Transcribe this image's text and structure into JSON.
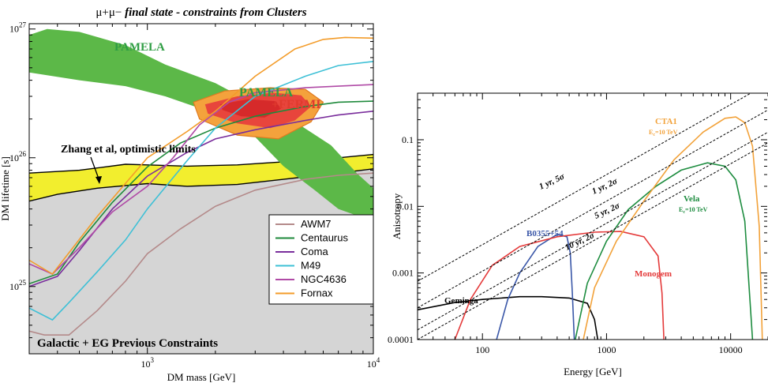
{
  "chart_data": [
    {
      "type": "line",
      "title": "μ+μ− final state - constraints from Clusters",
      "title_plain": "μ+μ−",
      "title_italic": "final state - constraints from Clusters",
      "xlabel": "DM mass [GeV]",
      "ylabel": "DM lifetime [s]",
      "xscale": "log",
      "yscale": "log",
      "xlim": [
        300,
        10000
      ],
      "ylim": [
        3e+24,
        1.1e+27
      ],
      "x_ticks": [
        {
          "value": 1000,
          "base": "10",
          "exp": "3"
        },
        {
          "value": 10000,
          "base": "10",
          "exp": "4"
        }
      ],
      "y_ticks": [
        {
          "value": 1e+25,
          "base": "10",
          "exp": "25"
        },
        {
          "value": 1e+26,
          "base": "10",
          "exp": "26"
        },
        {
          "value": 1e+27,
          "base": "10",
          "exp": "27"
        }
      ],
      "series": [
        {
          "name": "AWM7",
          "color": "#b48a8a",
          "x": [
            300,
            350,
            450,
            600,
            800,
            1000,
            1400,
            2000,
            3000,
            5000,
            7000,
            10000
          ],
          "y": [
            4.5e+24,
            4.2e+24,
            4.2e+24,
            6.5e+24,
            1.1e+25,
            1.8e+25,
            2.8e+25,
            4.2e+25,
            5.6e+25,
            6.8e+25,
            7.3e+25,
            7.6e+25
          ]
        },
        {
          "name": "Centaurus",
          "color": "#1f8a3c",
          "x": [
            300,
            400,
            500,
            700,
            1000,
            1400,
            2000,
            3000,
            5000,
            7000,
            10000
          ],
          "y": [
            1.05e+25,
            1.25e+25,
            2.2e+25,
            4.5e+25,
            8.5e+25,
            1.3e+26,
            1.7e+26,
            2.1e+26,
            2.5e+26,
            2.7e+26,
            2.75e+26
          ]
        },
        {
          "name": "Coma",
          "color": "#7a2e9c",
          "x": [
            300,
            400,
            500,
            700,
            1000,
            1500,
            2000,
            3000,
            5000,
            7000,
            10000
          ],
          "y": [
            1e+25,
            1.2e+25,
            1.9e+25,
            4e+25,
            7.2e+25,
            1.1e+26,
            1.4e+26,
            1.65e+26,
            1.95e+26,
            2.15e+26,
            2.3e+26
          ]
        },
        {
          "name": "M49",
          "color": "#3ec0d6",
          "x": [
            300,
            380,
            450,
            600,
            800,
            1000,
            1500,
            2000,
            3000,
            5000,
            7000,
            10000
          ],
          "y": [
            6.8e+24,
            5.5e+24,
            7.5e+24,
            1.3e+25,
            2.3e+25,
            4e+25,
            9.5e+25,
            1.7e+26,
            3e+26,
            4.3e+26,
            5.2e+26,
            5.6e+26
          ]
        },
        {
          "name": "NGC4636",
          "color": "#b04aa6",
          "x": [
            300,
            380,
            500,
            700,
            1000,
            1300,
            1700,
            2300,
            3000,
            5000,
            7000,
            10000
          ],
          "y": [
            1.5e+25,
            1.25e+25,
            2e+25,
            3.8e+25,
            6e+25,
            1e+26,
            1.8e+26,
            2.7e+26,
            3.2e+26,
            3.5e+26,
            3.6e+26,
            3.7e+26
          ]
        },
        {
          "name": "Fornax",
          "color": "#f39c2a",
          "x": [
            300,
            380,
            600,
            1000,
            1500,
            2000,
            3000,
            4500,
            6000,
            7500,
            10000
          ],
          "y": [
            1.6e+25,
            1.25e+25,
            3.5e+25,
            1e+26,
            1.6e+26,
            2.3e+26,
            4.3e+26,
            7e+26,
            8.3e+26,
            8.6e+26,
            8.5e+26
          ]
        }
      ],
      "annotations": {
        "pamela": "PAMELA",
        "pamela_fermi_1": "PAMELA",
        "pamela_fermi_2": "+FERMI",
        "zhang": "Zhang et al, optimistic limits",
        "galactic": "Galactic + EG Previous Constraints"
      },
      "colors": {
        "pamela_band": "#5cb848",
        "fermi_outer": "#f4a23c",
        "fermi_inner": "#e8453c",
        "fermi_core": "#d62a2a",
        "zhang_band": "#f2ee2e",
        "excluded": "#d5d5d5"
      },
      "legend_position": "lower-right"
    },
    {
      "type": "line",
      "xlabel": "Energy [GeV]",
      "ylabel": "Anisotropy",
      "xscale": "log",
      "yscale": "log",
      "xlim": [
        30,
        20000
      ],
      "ylim": [
        0.0001,
        0.5
      ],
      "x_ticks": [
        "100",
        "1000",
        "10000"
      ],
      "y_ticks": [
        "0.0001",
        "0.001",
        "0.01",
        "0.1"
      ],
      "series": [
        {
          "name": "Geminga",
          "color": "#000000",
          "x": [
            30,
            60,
            100,
            200,
            300,
            500,
            700,
            800,
            850
          ],
          "y": [
            0.00028,
            0.00036,
            0.0004,
            0.00044,
            0.00044,
            0.00042,
            0.00035,
            0.0002,
            0.0001
          ]
        },
        {
          "name": "B0355+54",
          "color": "#3a57a8",
          "x": [
            130,
            160,
            200,
            280,
            400,
            480,
            510,
            530,
            550
          ],
          "y": [
            0.0001,
            0.0004,
            0.001,
            0.0025,
            0.0038,
            0.0035,
            0.002,
            0.0005,
            0.0001
          ]
        },
        {
          "name": "Monogem",
          "color": "#e43a3a",
          "x": [
            60,
            80,
            120,
            200,
            400,
            800,
            1300,
            2000,
            2600,
            2800,
            2900
          ],
          "y": [
            0.0001,
            0.0004,
            0.0013,
            0.0025,
            0.0035,
            0.0041,
            0.0042,
            0.0035,
            0.0018,
            0.0005,
            0.0001
          ]
        },
        {
          "name": "Vela",
          "color": "#1d8c3f",
          "x": [
            560,
            700,
            1000,
            1500,
            2500,
            4000,
            6500,
            9000,
            11000,
            13000,
            15000
          ],
          "y": [
            0.0001,
            0.0007,
            0.003,
            0.009,
            0.02,
            0.035,
            0.045,
            0.04,
            0.025,
            0.006,
            0.0001
          ]
        },
        {
          "name": "CTA1",
          "color": "#f2a23a",
          "x": [
            650,
            800,
            1200,
            2000,
            3500,
            6000,
            9000,
            11000,
            13000,
            15000,
            17000,
            18000
          ],
          "y": [
            0.0001,
            0.0006,
            0.003,
            0.012,
            0.05,
            0.13,
            0.21,
            0.22,
            0.18,
            0.08,
            0.005,
            0.0001
          ]
        },
        {
          "name": "1 yr, 5σ",
          "color": "#000000",
          "dashed": true,
          "x": [
            30,
            20000
          ],
          "y": [
            0.00075,
            0.7
          ]
        },
        {
          "name": "1 yr, 2σ",
          "color": "#000000",
          "dashed": true,
          "x": [
            30,
            20000
          ],
          "y": [
            0.0003,
            0.28
          ]
        },
        {
          "name": "5 yr, 2σ",
          "color": "#000000",
          "dashed": true,
          "x": [
            30,
            20000
          ],
          "y": [
            0.00014,
            0.13
          ]
        },
        {
          "name": "10 yr, 2σ",
          "color": "#000000",
          "dashed": true,
          "x": [
            30,
            20000
          ],
          "y": [
            0.0001,
            0.09
          ]
        }
      ],
      "annotations": {
        "geminga": "Geminga",
        "b0355": "B0355+54",
        "monogem": "Monogem",
        "vela": "Vela",
        "vela_sub_base": "E",
        "vela_sub_sub": "c",
        "vela_sub_rest": "=10 TeV",
        "cta1": "CTA1",
        "cta1_sub_base": "E",
        "cta1_sub_sub": "c",
        "cta1_sub_rest": "=10 TeV",
        "l1": "1 yr, 5σ",
        "l2": "1 yr, 2σ",
        "l3": "5 yr, 2σ",
        "l4": "10 yr, 2σ"
      },
      "grid": false
    }
  ]
}
